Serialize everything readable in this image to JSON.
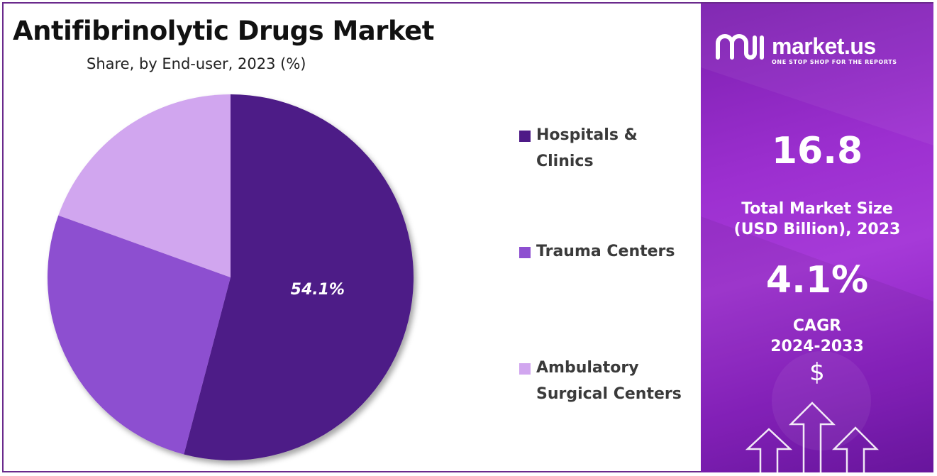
{
  "chart_data": {
    "type": "pie",
    "title": "Antifibrinolytic Drugs Market",
    "subtitle": "Share, by End-user, 2023 (%)",
    "slices": [
      {
        "name": "Hospitals & Clinics",
        "value": 54.1,
        "label": "54.1%",
        "color": "#4e1a87"
      },
      {
        "name": "Trauma Centers",
        "value": 26.4,
        "label": "",
        "color": "#8d4fd0"
      },
      {
        "name": "Ambulatory Surgical Centers",
        "value": 19.5,
        "label": "",
        "color": "#d1a6ef"
      }
    ],
    "legend": {
      "placement": "right",
      "items": [
        "Hospitals & Clinics",
        "Trauma Centers",
        "Ambulatory Surgical Centers"
      ]
    }
  },
  "panel": {
    "brand": "market.us",
    "tagline": "ONE STOP SHOP FOR THE REPORTS",
    "market_size_value": "16.8",
    "market_size_label": "Total Market Size (USD Billion), 2023",
    "cagr_value": "4.1%",
    "cagr_label": "CAGR 2024-2033",
    "currency_symbol": "$",
    "background_colors": [
      "#7b1fae",
      "#a63ad8",
      "#6e17a6"
    ]
  },
  "icons": [
    "market-us-logo-icon",
    "arrow-up-icon",
    "dollar-icon"
  ]
}
